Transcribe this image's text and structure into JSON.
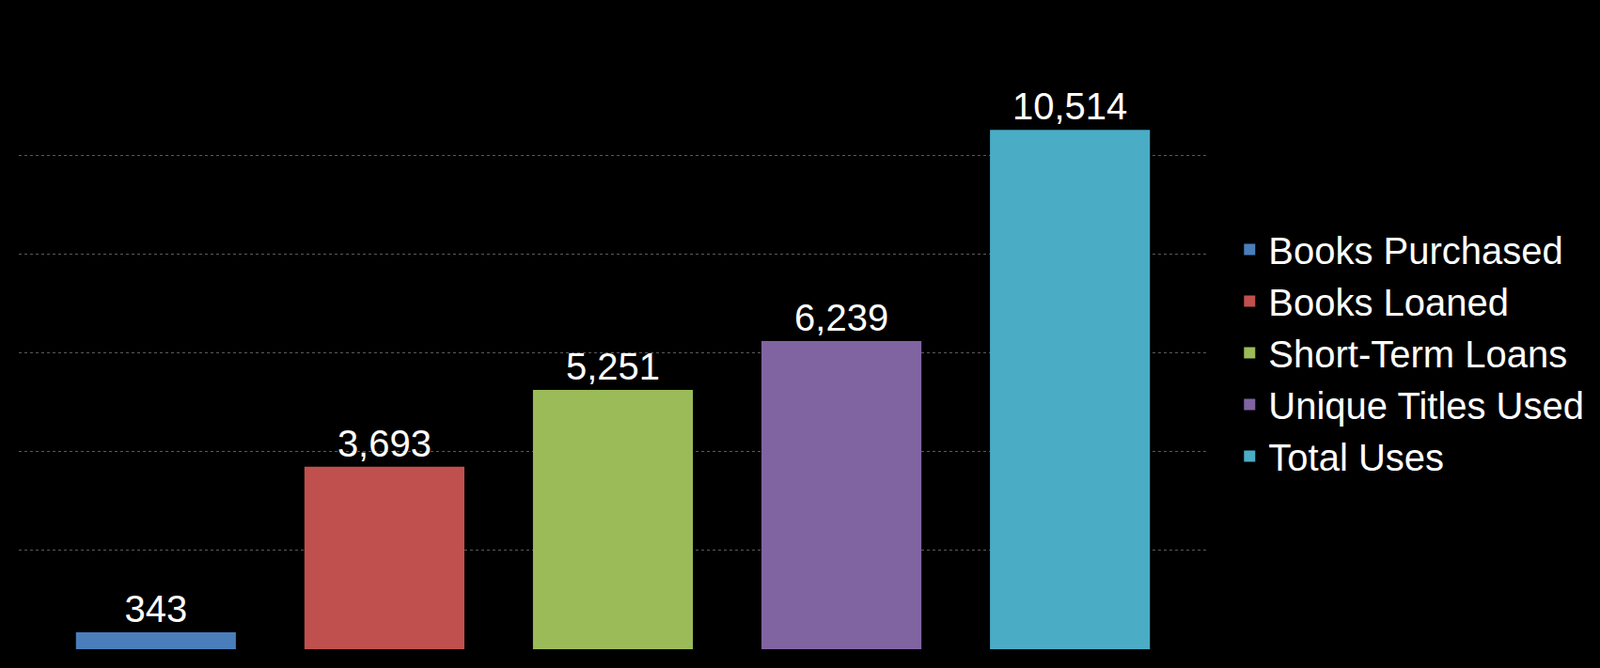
{
  "chart_data": {
    "type": "bar",
    "categories": [
      "Books Purchased",
      "Books Loaned",
      "Short-Term Loans",
      "Unique Titles Used",
      "Total Uses"
    ],
    "values": [
      343,
      3693,
      5251,
      6239,
      10514
    ],
    "value_labels": [
      "343",
      "3,693",
      "5,251",
      "6,239",
      "10,514"
    ],
    "colors": [
      "#4a7ebb",
      "#c0504d",
      "#9bbb59",
      "#8064a2",
      "#4bacc6"
    ],
    "ylim": [
      0,
      12000
    ],
    "yticks": [
      0,
      2000,
      4000,
      6000,
      8000,
      10000,
      12000
    ],
    "grid": true,
    "data_labels": true,
    "tick_labels": false,
    "legend": "right"
  }
}
